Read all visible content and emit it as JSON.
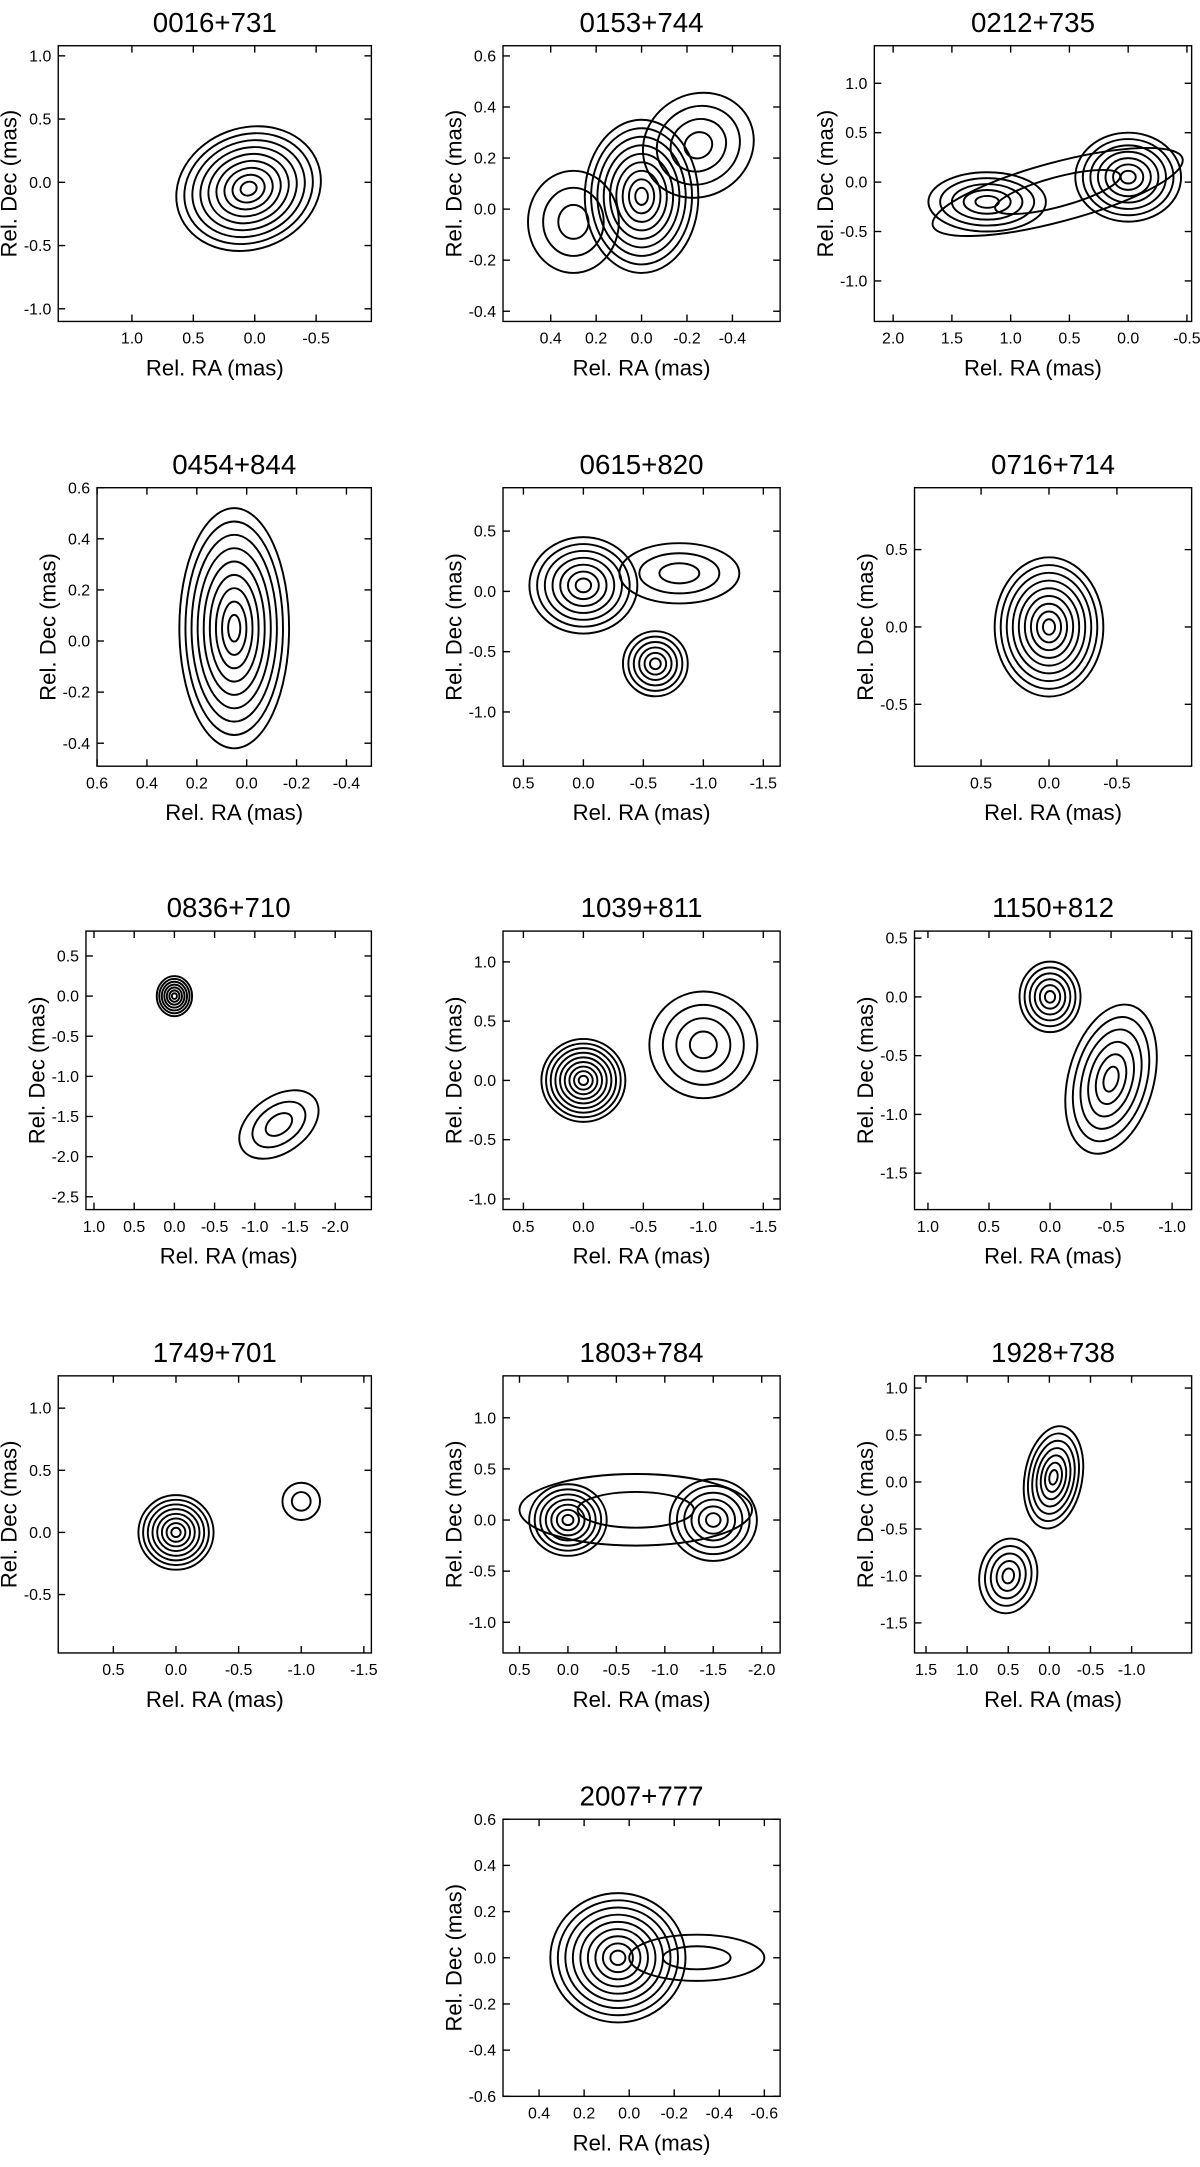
{
  "chart_data": [
    {
      "type": "contour",
      "title": "0016+731",
      "xlabel": "Rel. RA (mas)",
      "ylabel": "Rel. Dec (mas)",
      "xlim": [
        1.6,
        -0.95
      ],
      "ylim": [
        -1.1,
        1.08
      ],
      "xticks": [
        {
          "value": 1,
          "label": "1.0"
        },
        0.5,
        {
          "value": 0,
          "label": "0.0"
        },
        -0.5
      ],
      "yticks": [
        {
          "value": -1,
          "label": "-1.0"
        },
        -0.5,
        {
          "value": 0,
          "label": "0.0"
        },
        0.5,
        {
          "value": 1,
          "label": "1.0"
        }
      ]
    },
    {
      "type": "contour",
      "title": "0153+744",
      "xlabel": "Rel. RA (mas)",
      "ylabel": "Rel. Dec (mas)",
      "xlim": [
        0.61,
        -0.61
      ],
      "ylim": [
        -0.44,
        0.64
      ],
      "xticks": [
        0.4,
        0.2,
        {
          "value": 0,
          "label": "0.0"
        },
        -0.2,
        -0.4
      ],
      "yticks": [
        -0.4,
        -0.2,
        {
          "value": 0,
          "label": "0.0"
        },
        0.2,
        0.4,
        0.6
      ]
    },
    {
      "type": "contour",
      "title": "0212+735",
      "xlabel": "Rel. RA (mas)",
      "ylabel": "Rel. Dec (mas)",
      "xlim": [
        2.16,
        -0.54
      ],
      "ylim": [
        -1.41,
        1.38
      ],
      "xticks": [
        {
          "value": 2,
          "label": "2.0"
        },
        1.5,
        {
          "value": 1,
          "label": "1.0"
        },
        0.5,
        {
          "value": 0,
          "label": "0.0"
        },
        -0.5
      ],
      "yticks": [
        {
          "value": -1,
          "label": "-1.0"
        },
        -0.5,
        {
          "value": 0,
          "label": "0.0"
        },
        0.5,
        {
          "value": 1,
          "label": "1.0"
        }
      ]
    },
    {
      "type": "contour",
      "title": "0454+844",
      "xlabel": "Rel. RA (mas)",
      "ylabel": "Rel. Dec (mas)",
      "xlim": [
        0.6,
        -0.5
      ],
      "ylim": [
        -0.49,
        0.6
      ],
      "xticks": [
        0.6,
        0.4,
        0.2,
        {
          "value": 0,
          "label": "0.0"
        },
        -0.2,
        -0.4
      ],
      "yticks": [
        -0.4,
        -0.2,
        {
          "value": 0,
          "label": "0.0"
        },
        0.2,
        0.4,
        0.6
      ]
    },
    {
      "type": "contour",
      "title": "0615+820",
      "xlabel": "Rel. RA (mas)",
      "ylabel": "Rel. Dec (mas)",
      "xlim": [
        0.67,
        -1.64
      ],
      "ylim": [
        -1.45,
        0.86
      ],
      "xticks": [
        0.5,
        {
          "value": 0,
          "label": "0.0"
        },
        -0.5,
        {
          "value": -1,
          "label": "-1.0"
        },
        -1.5
      ],
      "yticks": [
        {
          "value": -1,
          "label": "-1.0"
        },
        -0.5,
        {
          "value": 0,
          "label": "0.0"
        },
        0.5
      ]
    },
    {
      "type": "contour",
      "title": "0716+714",
      "xlabel": "Rel. RA (mas)",
      "ylabel": "Rel. Dec (mas)",
      "xlim": [
        0.99,
        -1.05
      ],
      "ylim": [
        -0.9,
        0.9
      ],
      "xticks": [
        0.5,
        {
          "value": 0,
          "label": "0.0"
        },
        -0.5
      ],
      "yticks": [
        -0.5,
        {
          "value": 0,
          "label": "0.0"
        },
        0.5
      ]
    },
    {
      "type": "contour",
      "title": "0836+710",
      "xlabel": "Rel. RA (mas)",
      "ylabel": "Rel. Dec (mas)",
      "xlim": [
        1.1,
        -2.45
      ],
      "ylim": [
        -2.66,
        0.81
      ],
      "xticks": [
        {
          "value": 1,
          "label": "1.0"
        },
        0.5,
        {
          "value": 0,
          "label": "0.0"
        },
        -0.5,
        {
          "value": -1,
          "label": "-1.0"
        },
        -1.5,
        {
          "value": -2,
          "label": "-2.0"
        }
      ],
      "yticks": [
        -2.5,
        {
          "value": -2,
          "label": "-2.0"
        },
        -1.5,
        {
          "value": -1,
          "label": "-1.0"
        },
        -0.5,
        {
          "value": 0,
          "label": "0.0"
        },
        0.5
      ]
    },
    {
      "type": "contour",
      "title": "1039+811",
      "xlabel": "Rel. RA (mas)",
      "ylabel": "Rel. Dec (mas)",
      "xlim": [
        0.67,
        -1.64
      ],
      "ylim": [
        -1.09,
        1.26
      ],
      "xticks": [
        0.5,
        {
          "value": 0,
          "label": "0.0"
        },
        -0.5,
        {
          "value": -1,
          "label": "-1.0"
        },
        -1.5
      ],
      "yticks": [
        {
          "value": -1,
          "label": "-1.0"
        },
        -0.5,
        {
          "value": 0,
          "label": "0.0"
        },
        0.5,
        {
          "value": 1,
          "label": "1.0"
        }
      ]
    },
    {
      "type": "contour",
      "title": "1150+812",
      "xlabel": "Rel. RA (mas)",
      "ylabel": "Rel. Dec (mas)",
      "xlim": [
        1.11,
        -1.16
      ],
      "ylim": [
        -1.81,
        0.56
      ],
      "xticks": [
        {
          "value": 1,
          "label": "1.0"
        },
        0.5,
        {
          "value": 0,
          "label": "0.0"
        },
        -0.5,
        {
          "value": -1,
          "label": "-1.0"
        }
      ],
      "yticks": [
        -1.5,
        {
          "value": -1,
          "label": "-1.0"
        },
        -0.5,
        {
          "value": 0,
          "label": "0.0"
        },
        0.5
      ]
    },
    {
      "type": "contour",
      "title": "1749+701",
      "xlabel": "Rel. RA (mas)",
      "ylabel": "Rel. Dec (mas)",
      "xlim": [
        0.94,
        -1.56
      ],
      "ylim": [
        -0.97,
        1.26
      ],
      "xticks": [
        0.5,
        {
          "value": 0,
          "label": "0.0"
        },
        -0.5,
        {
          "value": -1,
          "label": "-1.0"
        },
        -1.5
      ],
      "yticks": [
        -0.5,
        {
          "value": 0,
          "label": "0.0"
        },
        0.5,
        {
          "value": 1,
          "label": "1.0"
        }
      ]
    },
    {
      "type": "contour",
      "title": "1803+784",
      "xlabel": "Rel. RA (mas)",
      "ylabel": "Rel. Dec (mas)",
      "xlim": [
        0.67,
        -2.19
      ],
      "ylim": [
        -1.3,
        1.41
      ],
      "xticks": [
        0.5,
        {
          "value": 0,
          "label": "0.0"
        },
        -0.5,
        {
          "value": -1,
          "label": "-1.0"
        },
        -1.5,
        {
          "value": -2,
          "label": "-2.0"
        }
      ],
      "yticks": [
        {
          "value": -1,
          "label": "-1.0"
        },
        -0.5,
        {
          "value": 0,
          "label": "0.0"
        },
        0.5,
        {
          "value": 1,
          "label": "1.0"
        }
      ]
    },
    {
      "type": "contour",
      "title": "1928+738",
      "xlabel": "Rel. RA (mas)",
      "ylabel": "Rel. Dec (mas)",
      "xlim": [
        1.64,
        -1.73
      ],
      "ylim": [
        -1.82,
        1.13
      ],
      "xticks": [
        1.5,
        {
          "value": 1,
          "label": "1.0"
        },
        0.5,
        {
          "value": 0,
          "label": "0.0"
        },
        -0.5,
        {
          "value": -1,
          "label": "-1.0"
        }
      ],
      "yticks": [
        -1.5,
        {
          "value": -1,
          "label": "-1.0"
        },
        -0.5,
        {
          "value": 0,
          "label": "0.0"
        },
        0.5,
        {
          "value": 1,
          "label": "1.0"
        }
      ]
    },
    {
      "type": "contour",
      "title": "2007+777",
      "xlabel": "Rel. RA (mas)",
      "ylabel": "Rel. Dec (mas)",
      "xlim": [
        0.56,
        -0.67
      ],
      "ylim": [
        -0.6,
        0.6
      ],
      "xticks": [
        0.4,
        0.2,
        {
          "value": 0,
          "label": "0.0"
        },
        -0.2,
        -0.4,
        -0.6
      ],
      "yticks": [
        -0.6,
        -0.4,
        -0.2,
        {
          "value": 0,
          "label": "0.0"
        },
        0.2,
        0.4,
        0.6
      ]
    }
  ]
}
